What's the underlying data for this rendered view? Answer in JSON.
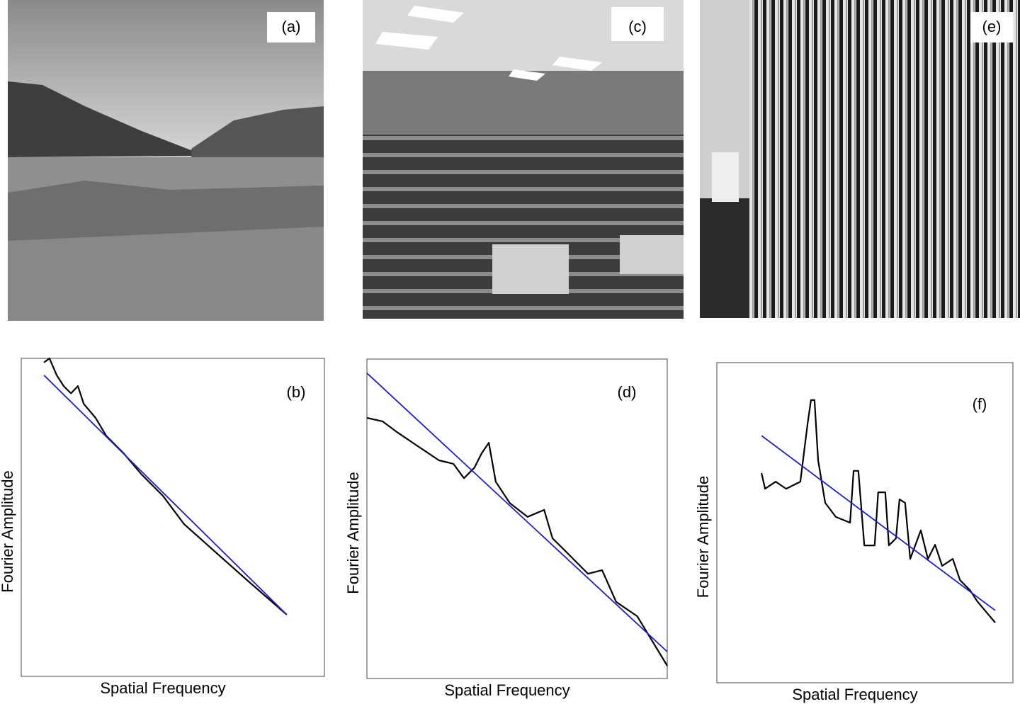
{
  "photos": [
    {
      "label": "(a)"
    },
    {
      "label": "(c)"
    },
    {
      "label": "(e)"
    }
  ],
  "chart_data": [
    {
      "type": "line",
      "annotation": "(b)",
      "x_label": "Spatial Frequency",
      "y_label": "Fourier Amplitude",
      "xlim": [
        0,
        100
      ],
      "ylim": [
        0,
        100
      ],
      "series": [
        {
          "color": "#000000",
          "x": [
            7.5,
            9.3,
            11.7,
            14,
            16.4,
            18.7,
            20.6,
            24.5,
            28,
            33.9,
            39.7,
            46.7,
            53.7,
            63,
            74.8,
            87.6
          ],
          "values": [
            98.7,
            100,
            94.7,
            91.3,
            89,
            91.3,
            85.7,
            81.3,
            75.7,
            70,
            63.5,
            56.8,
            47.9,
            40,
            30,
            19.4
          ]
        },
        {
          "color": "#1f1fc8",
          "x": [
            7.5,
            87.6
          ],
          "values": [
            94.7,
            19.4
          ]
        }
      ]
    },
    {
      "type": "line",
      "annotation": "(d)",
      "x_label": "Spatial Frequency",
      "y_label": "Fourier Amplitude",
      "xlim": [
        0,
        100
      ],
      "ylim": [
        0,
        100
      ],
      "series": [
        {
          "color": "#000000",
          "x": [
            0,
            5.2,
            9.9,
            17,
            24,
            28.8,
            32.3,
            35.8,
            38.2,
            40.6,
            42.9,
            47.6,
            53.5,
            59,
            61.8,
            66.5,
            73.6,
            78.3,
            83,
            90,
            100
          ],
          "values": [
            81.6,
            80.5,
            77.2,
            72.7,
            68.3,
            67.2,
            62.7,
            66,
            70.5,
            73.8,
            61.6,
            54.9,
            50.6,
            52.8,
            43.9,
            39.5,
            32.8,
            33.9,
            24,
            19.5,
            4
          ]
        },
        {
          "color": "#1f1fc8",
          "x": [
            0,
            100
          ],
          "values": [
            95.6,
            8.4
          ]
        }
      ]
    },
    {
      "type": "line",
      "annotation": "(f)",
      "x_label": "Spatial Frequency",
      "y_label": "Fourier Amplitude",
      "xlim": [
        0,
        100
      ],
      "ylim": [
        0,
        100
      ],
      "series": [
        {
          "color": "#000000",
          "x": [
            15.1,
            16.3,
            19.9,
            23.4,
            28.2,
            30.6,
            31.8,
            33,
            34.2,
            36.6,
            40.2,
            45,
            46.2,
            47.8,
            49.8,
            53.3,
            54.5,
            56.9,
            58.1,
            60.5,
            61.7,
            63.6,
            65.3,
            68.9,
            71.3,
            73.7,
            76.1,
            79.7,
            82.1,
            85.6,
            88,
            94
          ],
          "values": [
            65.5,
            60.6,
            62.8,
            60.6,
            62.8,
            80.5,
            88.3,
            88.3,
            69.5,
            56.2,
            51.8,
            50,
            66.2,
            66.2,
            42.9,
            42.9,
            59.5,
            59.5,
            42.9,
            45.1,
            57.3,
            56.2,
            38.7,
            47.6,
            38.7,
            43.1,
            36.5,
            38.7,
            32.1,
            28.8,
            25.4,
            18.8
          ]
        },
        {
          "color": "#1f1fc8",
          "x": [
            15.1,
            94
          ],
          "values": [
            77.2,
            22.6
          ]
        }
      ]
    }
  ]
}
